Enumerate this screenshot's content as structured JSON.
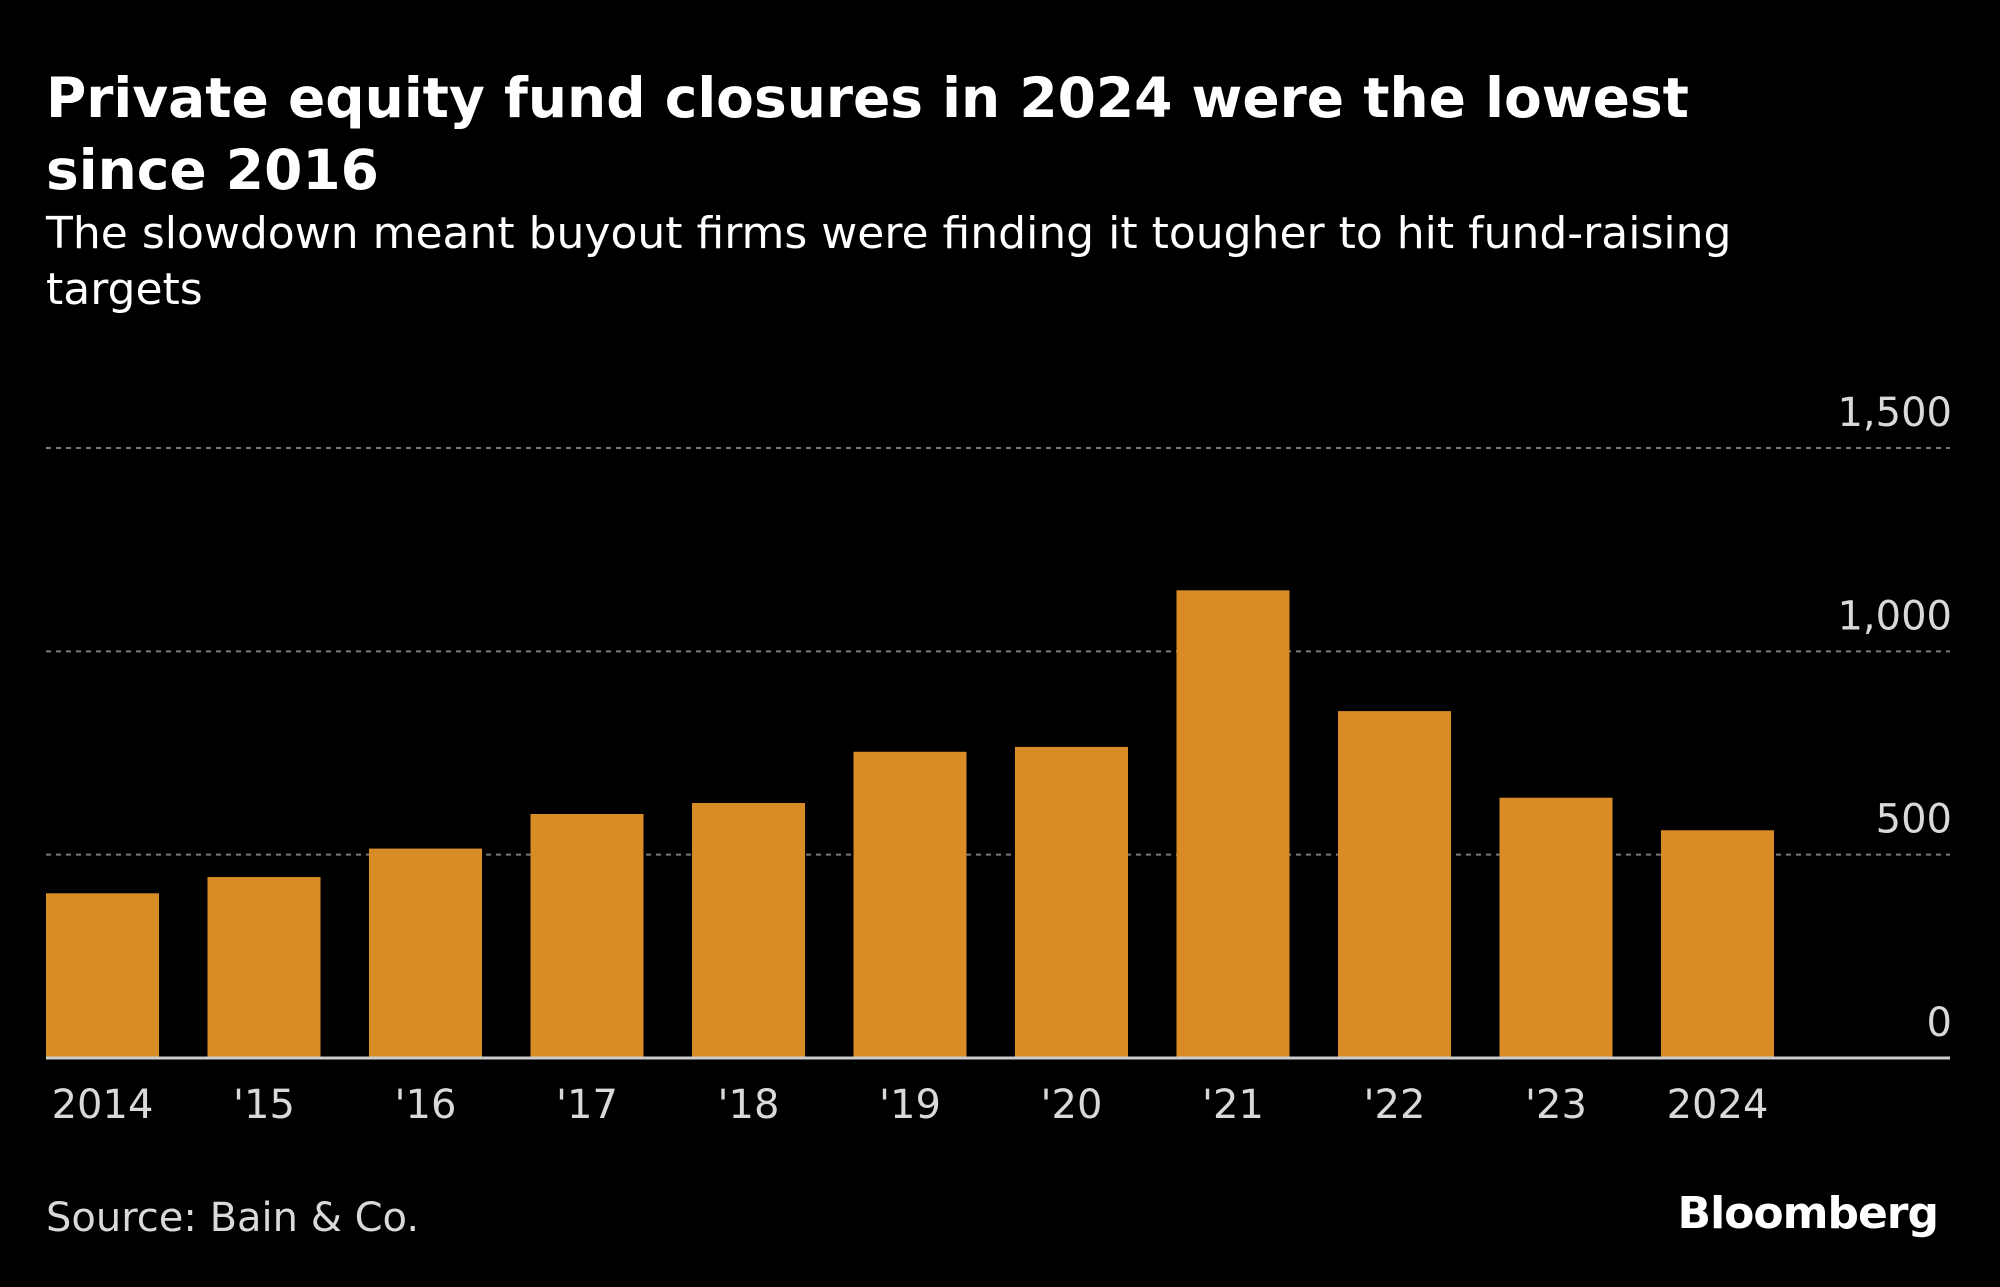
{
  "title": "Private equity fund closures in 2024 were the lowest since 2016",
  "subtitle": "The slowdown meant buyout firms were finding it tougher to hit fund-raising targets",
  "source": "Source: Bain & Co.",
  "brand": "Bloomberg",
  "colors": {
    "background": "#000000",
    "bar": "#d98b26",
    "grid": "#7a7a7a",
    "axis": "#cccccc",
    "text": "#d9d9d9"
  },
  "chart_data": {
    "type": "bar",
    "categories": [
      "2014",
      "'15",
      "'16",
      "'17",
      "'18",
      "'19",
      "'20",
      "'21",
      "'22",
      "'23",
      "2024"
    ],
    "values": [
      405,
      445,
      515,
      600,
      627,
      753,
      765,
      1150,
      853,
      640,
      560
    ],
    "ylim": [
      0,
      1500
    ],
    "yticks": [
      0,
      500,
      1000,
      1500
    ],
    "ytick_labels": [
      "0",
      "500",
      "1,000",
      "1,500"
    ],
    "grid": true,
    "y_axis_side": "right"
  }
}
